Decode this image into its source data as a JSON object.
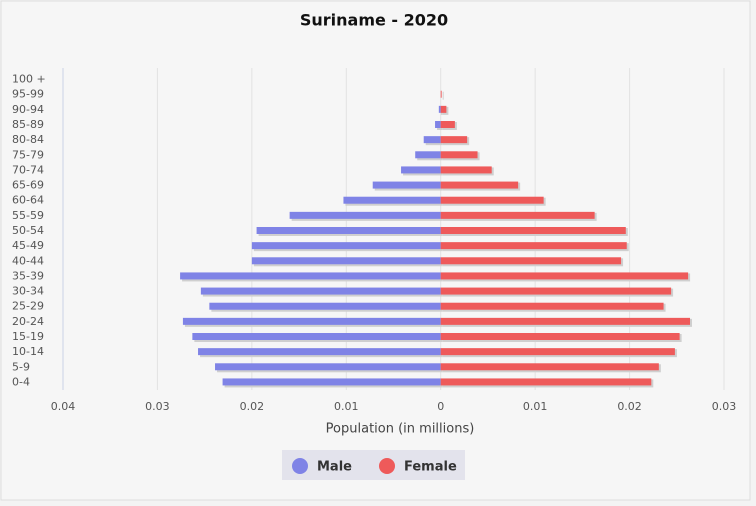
{
  "chart_data": {
    "type": "pyramid",
    "title": "Suriname - 2020",
    "x_label": "Population (in millions)",
    "categories": [
      "100 +",
      "95-99",
      "90-94",
      "85-89",
      "80-84",
      "75-79",
      "70-74",
      "65-69",
      "60-64",
      "55-59",
      "50-54",
      "45-49",
      "40-44",
      "35-39",
      "30-34",
      "25-29",
      "20-24",
      "15-19",
      "10-14",
      "5-9",
      "0-4"
    ],
    "series": [
      {
        "name": "Male",
        "color": "#7f83e6",
        "values": [
          0,
          0,
          -0.0002,
          -0.0006,
          -0.0018,
          -0.0027,
          -0.0042,
          -0.0072,
          -0.0103,
          -0.016,
          -0.0195,
          -0.02,
          -0.02,
          -0.0276,
          -0.0254,
          -0.0245,
          -0.0273,
          -0.0263,
          -0.0257,
          -0.0239,
          -0.0231
        ]
      },
      {
        "name": "Female",
        "color": "#ee5a5a",
        "values": [
          0,
          0.0001,
          0.0006,
          0.0015,
          0.0028,
          0.0039,
          0.0054,
          0.0082,
          0.0109,
          0.0163,
          0.0196,
          0.0197,
          0.0191,
          0.0262,
          0.0244,
          0.0236,
          0.0264,
          0.0253,
          0.0248,
          0.0231,
          0.0223
        ]
      }
    ],
    "xlim": [
      -0.04,
      0.03
    ],
    "xticks": [
      {
        "value": -0.04,
        "label": "0.04"
      },
      {
        "value": -0.03,
        "label": "0.03"
      },
      {
        "value": -0.02,
        "label": "0.02"
      },
      {
        "value": -0.01,
        "label": "0.01"
      },
      0,
      0.01,
      0.02,
      0.03
    ],
    "grid": true,
    "legend": "bottom"
  }
}
